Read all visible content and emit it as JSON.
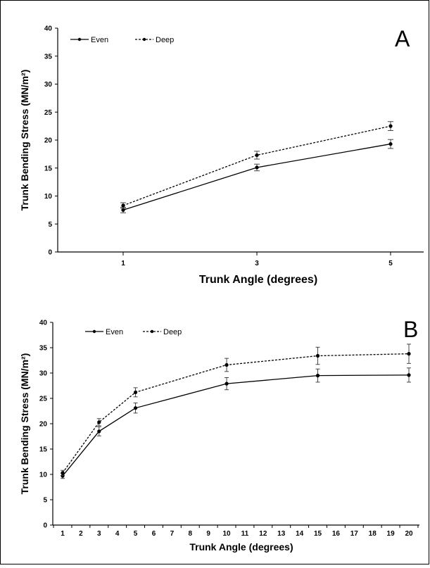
{
  "chart_data": [
    {
      "type": "line",
      "panel_label": "A",
      "x": [
        1,
        3,
        5
      ],
      "xticks": [
        "1",
        "3",
        "5"
      ],
      "xlabel": "Trunk Angle (degrees)",
      "ylabel": "Trunk Bending Stress (MN/m²)",
      "ylim": [
        0,
        40
      ],
      "yticks": [
        0,
        5,
        10,
        15,
        20,
        25,
        30,
        35,
        40
      ],
      "legend_position": "top-left",
      "grid": false,
      "series": [
        {
          "name": "Even",
          "style": "solid",
          "values": [
            7.5,
            15.1,
            19.3
          ],
          "errors": [
            0.5,
            0.6,
            0.8
          ]
        },
        {
          "name": "Deep",
          "style": "dashed",
          "values": [
            8.3,
            17.3,
            22.5
          ],
          "errors": [
            0.5,
            0.7,
            0.8
          ]
        }
      ]
    },
    {
      "type": "line",
      "panel_label": "B",
      "x": [
        1,
        3,
        5,
        10,
        15,
        20
      ],
      "xticks": [
        "1",
        "2",
        "3",
        "4",
        "5",
        "6",
        "7",
        "8",
        "9",
        "10",
        "11",
        "12",
        "13",
        "14",
        "15",
        "16",
        "17",
        "18",
        "19",
        "20"
      ],
      "xlabel": "Trunk Angle (degrees)",
      "ylabel": "Trunk Bending Stress (MN/m²)",
      "ylim": [
        0,
        40
      ],
      "yticks": [
        0,
        5,
        10,
        15,
        20,
        25,
        30,
        35,
        40
      ],
      "legend_position": "top-left",
      "grid": false,
      "series": [
        {
          "name": "Even",
          "style": "solid",
          "values": [
            9.7,
            18.5,
            23.1,
            27.9,
            29.5,
            29.6
          ],
          "errors": [
            0.5,
            0.9,
            1.0,
            1.2,
            1.3,
            1.4
          ]
        },
        {
          "name": "Deep",
          "style": "dashed",
          "values": [
            10.3,
            20.3,
            26.2,
            31.6,
            33.4,
            33.8
          ],
          "errors": [
            0.5,
            0.7,
            0.9,
            1.3,
            1.7,
            1.9
          ]
        }
      ]
    }
  ]
}
